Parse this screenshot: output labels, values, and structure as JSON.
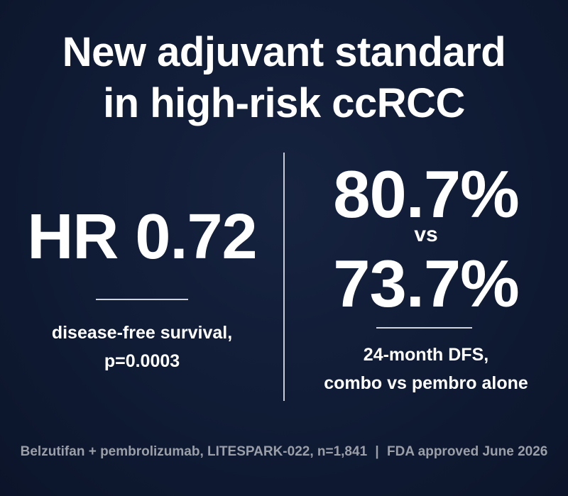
{
  "title": [
    "New adjuvant standard",
    "in high-risk ccRCC"
  ],
  "left": {
    "stat": "HR 0.72",
    "caption": [
      "disease-free survival,",
      "p=0.0003"
    ]
  },
  "right": {
    "stat_a": "80.7%",
    "vs": "vs",
    "stat_b": "73.7%",
    "caption": [
      "24-month DFS,",
      "combo vs pembro alone"
    ]
  },
  "footer": [
    "Belzutifan + pembrolizumab, LITESPARK-022, n=1,841",
    "FDA approved June 2026"
  ]
}
